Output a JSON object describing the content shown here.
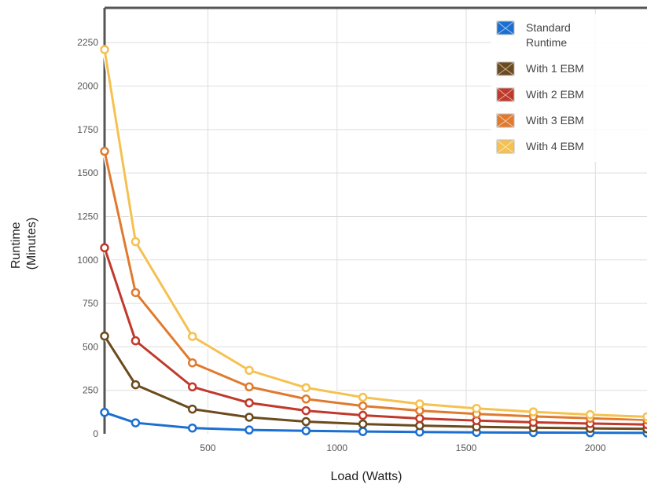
{
  "chart_data": {
    "type": "line",
    "xlabel": "Load (Watts)",
    "ylabel_lines": [
      "Runtime",
      "(Minutes)"
    ],
    "xlim": [
      100,
      2200
    ],
    "ylim": [
      0,
      2450
    ],
    "xticks": [
      500,
      1000,
      1500,
      2000
    ],
    "yticks": [
      0,
      250,
      500,
      750,
      1000,
      1250,
      1500,
      1750,
      2000,
      2250
    ],
    "grid": true,
    "legend_position": "top-right",
    "x": [
      100,
      220,
      440,
      660,
      880,
      1100,
      1320,
      1540,
      1760,
      1980,
      2200
    ],
    "series": [
      {
        "name": "Standard Runtime",
        "name_lines": [
          "Standard",
          "Runtime"
        ],
        "color": "#1a6fd1",
        "values": [
          123,
          63,
          33,
          22,
          17,
          13,
          10,
          8,
          7,
          6,
          5
        ]
      },
      {
        "name": "With 1 EBM",
        "name_lines": [
          "With 1 EBM"
        ],
        "color": "#6b4a1e",
        "values": [
          562,
          282,
          142,
          95,
          70,
          56,
          47,
          40,
          35,
          31,
          28
        ]
      },
      {
        "name": "With 2 EBM",
        "name_lines": [
          "With 2 EBM"
        ],
        "color": "#c0392b",
        "values": [
          1070,
          535,
          270,
          178,
          133,
          106,
          88,
          76,
          66,
          59,
          53
        ]
      },
      {
        "name": "With 3 EBM",
        "name_lines": [
          "With 3 EBM"
        ],
        "color": "#e07a2e",
        "values": [
          1625,
          812,
          408,
          270,
          200,
          160,
          133,
          114,
          100,
          89,
          80
        ]
      },
      {
        "name": "With 4 EBM",
        "name_lines": [
          "With 4 EBM"
        ],
        "color": "#f5c150",
        "values": [
          2210,
          1105,
          560,
          365,
          265,
          210,
          172,
          146,
          126,
          110,
          98
        ]
      }
    ]
  }
}
